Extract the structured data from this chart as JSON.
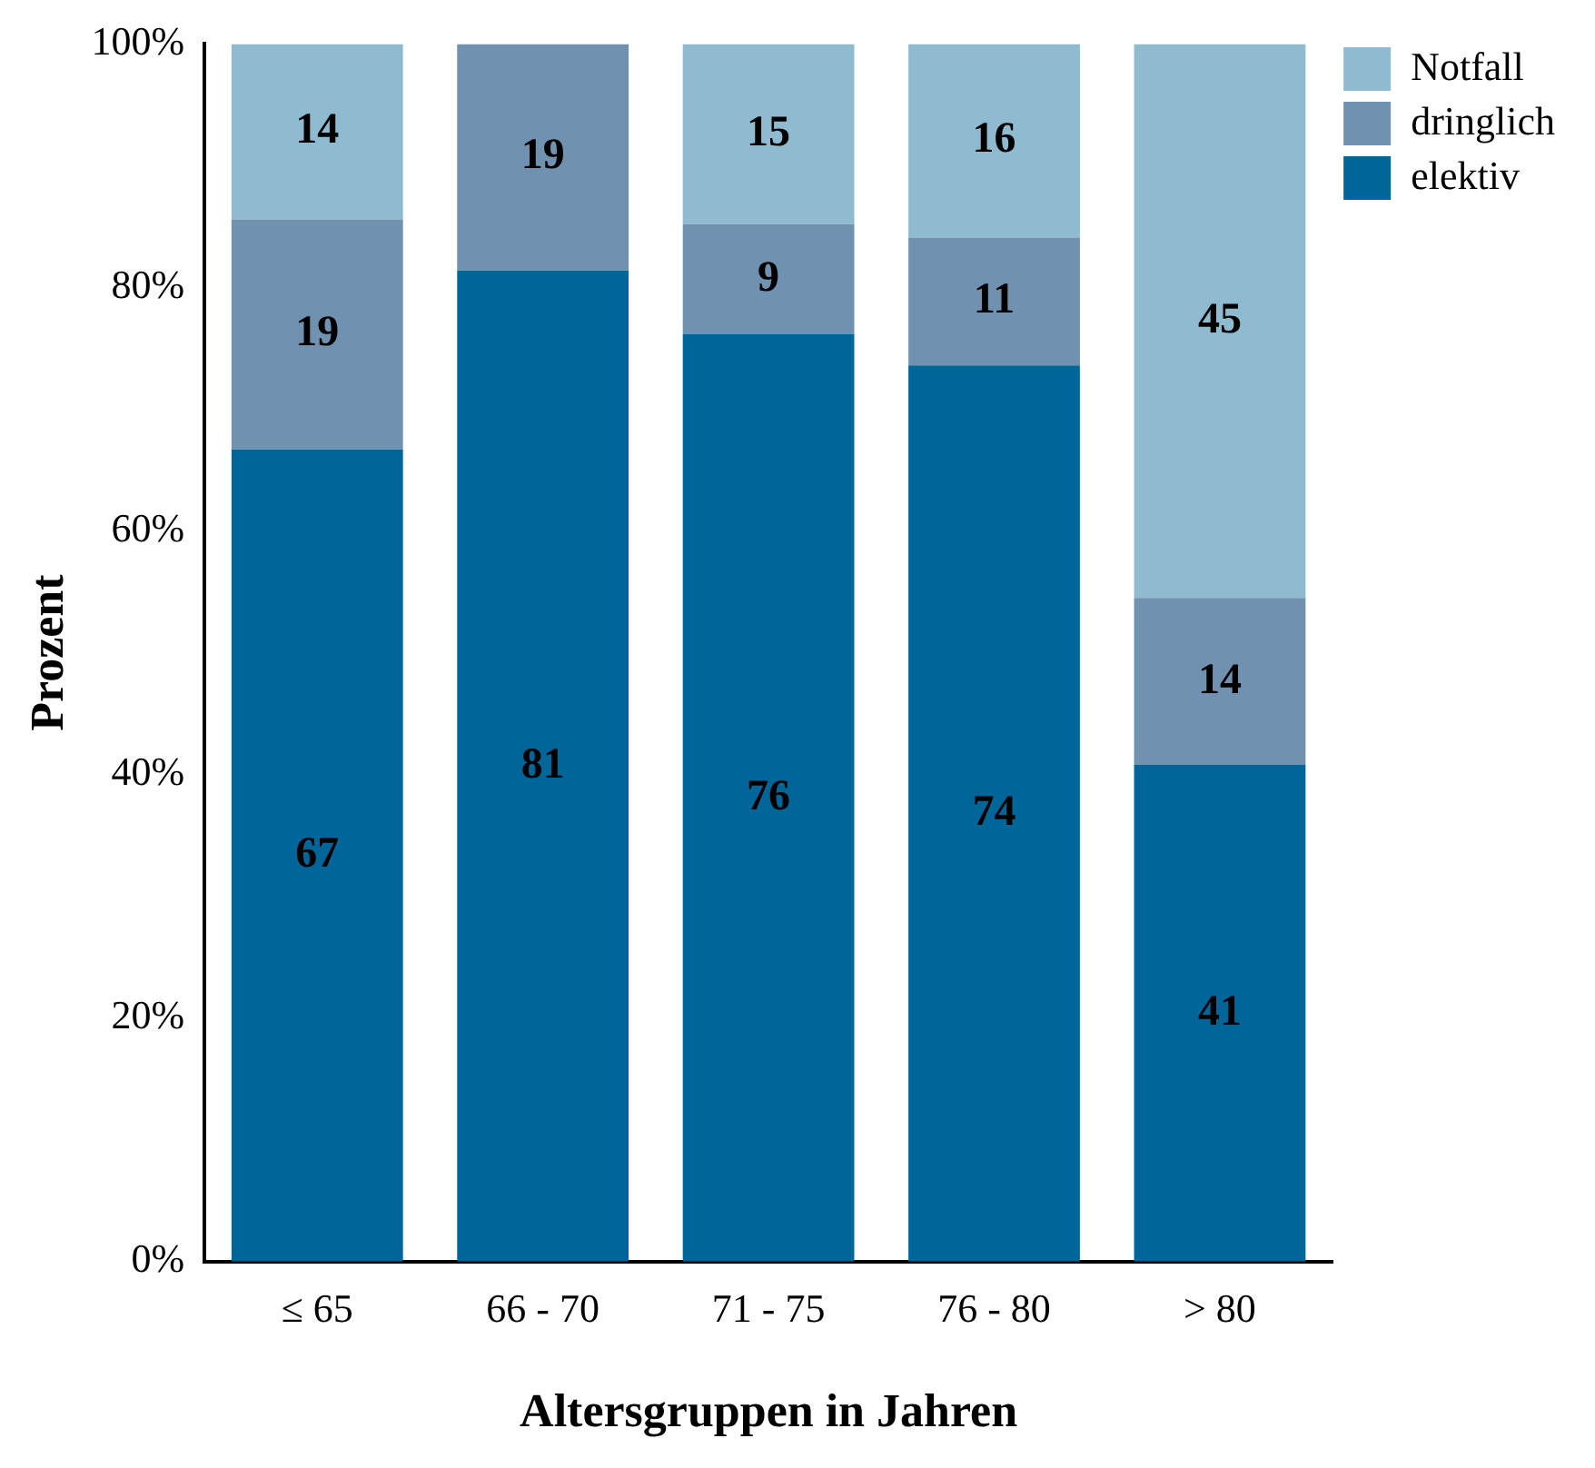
{
  "chart_data": {
    "type": "bar",
    "stacked": true,
    "xlabel": "Altersgruppen in Jahren",
    "ylabel": "Prozent",
    "categories": [
      "≤ 65",
      "66 - 70",
      "71 - 75",
      "76 - 80",
      "> 80"
    ],
    "series": [
      {
        "name": "elektiv",
        "color": "#00669a",
        "values": [
          66.7,
          81.4,
          76.2,
          73.6,
          40.8
        ],
        "value_labels": [
          "67",
          "81",
          "76",
          "74",
          "41"
        ]
      },
      {
        "name": "dringlich",
        "color": "#7191b0",
        "values": [
          18.9,
          18.6,
          9.0,
          10.5,
          13.7
        ],
        "value_labels": [
          "19",
          "19",
          "9",
          "11",
          "14"
        ]
      },
      {
        "name": "Notfall",
        "color": "#8fbbd0",
        "values": [
          14.4,
          null,
          14.8,
          15.9,
          45.5
        ],
        "value_labels": [
          "14",
          null,
          "15",
          "16",
          "45"
        ]
      }
    ],
    "ylim": [
      0,
      100
    ],
    "yticks": [
      {
        "value": 0,
        "label": "0%"
      },
      {
        "value": 20,
        "label": "20%"
      },
      {
        "value": 40,
        "label": "40%"
      },
      {
        "value": 60,
        "label": "60%"
      },
      {
        "value": 80,
        "label": "80%"
      },
      {
        "value": 100,
        "label": "100%"
      }
    ],
    "grid": false,
    "legend": "top right"
  }
}
